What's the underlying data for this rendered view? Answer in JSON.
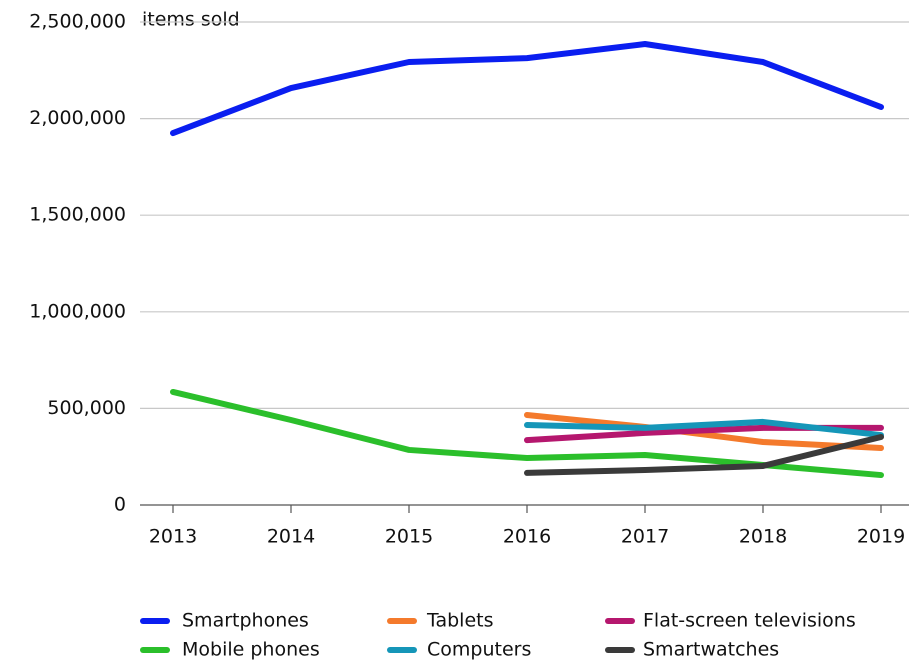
{
  "chart_data": {
    "type": "line",
    "annotation": "items sold",
    "categories": [
      "2013",
      "2014",
      "2015",
      "2016",
      "2017",
      "2018",
      "2019"
    ],
    "series": [
      {
        "name": "Smartphones",
        "color": "#0a1ef0",
        "values": [
          1925000,
          2158000,
          2293000,
          2313000,
          2386000,
          2293000,
          2060000
        ]
      },
      {
        "name": "Tablets",
        "color": "#f47a2c",
        "values": [
          null,
          null,
          null,
          466000,
          404000,
          326000,
          295000
        ]
      },
      {
        "name": "Flat-screen televisions",
        "color": "#b5176e",
        "values": [
          null,
          null,
          null,
          336000,
          373000,
          399000,
          399000
        ]
      },
      {
        "name": "Mobile phones",
        "color": "#2bbf2b",
        "values": [
          585000,
          440000,
          285000,
          243000,
          259000,
          207000,
          155000
        ]
      },
      {
        "name": "Computers",
        "color": "#1596b8",
        "values": [
          null,
          null,
          null,
          414000,
          399000,
          430000,
          362000
        ]
      },
      {
        "name": "Smartwatches",
        "color": "#3a3a3a",
        "values": [
          null,
          null,
          null,
          166000,
          181000,
          202000,
          352000
        ]
      }
    ],
    "ylim": [
      0,
      2500000
    ],
    "yticks": [
      0,
      {
        "value": 500000,
        "label": "500,000"
      },
      {
        "value": 1000000,
        "label": "1,000,000"
      },
      {
        "value": 1500000,
        "label": "1,500,000"
      },
      {
        "value": 2000000,
        "label": "2,000,000"
      },
      {
        "value": 2500000,
        "label": "2,500,000"
      }
    ],
    "grid": true
  }
}
